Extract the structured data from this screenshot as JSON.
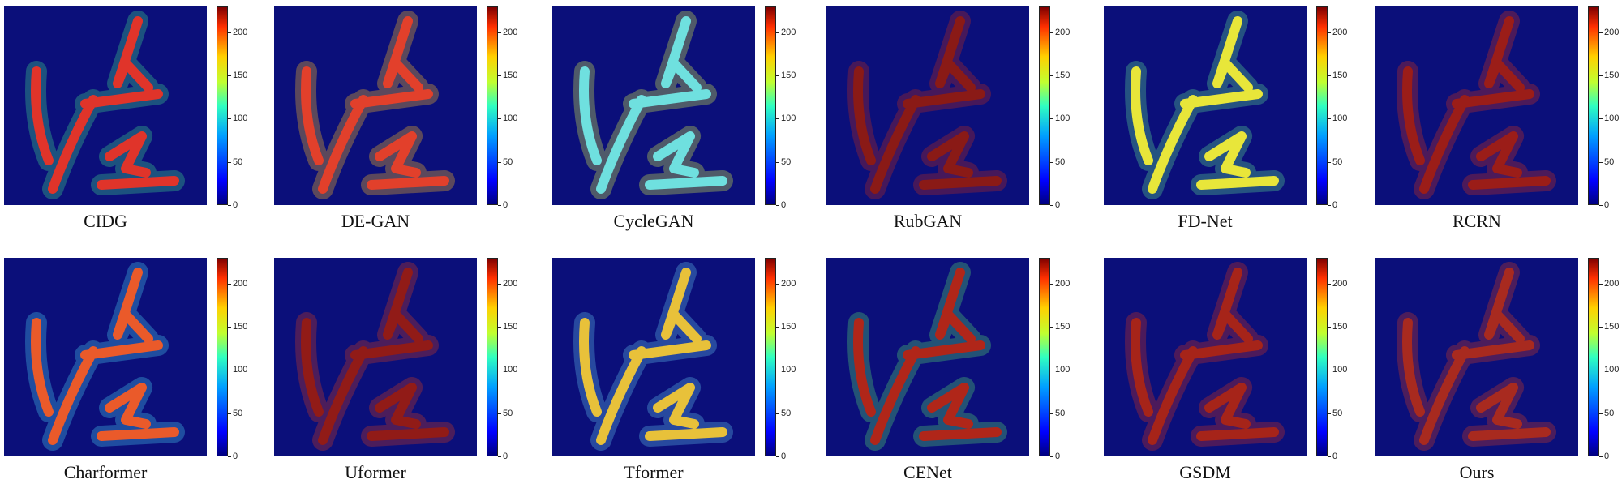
{
  "panels": [
    {
      "label": "CIDG",
      "tint": "#e0342a",
      "accent": "#3bd18a"
    },
    {
      "label": "DE-GAN",
      "tint": "#e2402b",
      "accent": "#f2b526"
    },
    {
      "label": "CycleGAN",
      "tint": "#6fe0df",
      "accent": "#cfe84a"
    },
    {
      "label": "RubGAN",
      "tint": "#8a1a16",
      "accent": "#b52a20"
    },
    {
      "label": "FD-Net",
      "tint": "#e8e63a",
      "accent": "#57d48f"
    },
    {
      "label": "RCRN",
      "tint": "#9b1d18",
      "accent": "#c7301f"
    },
    {
      "label": "Charformer",
      "tint": "#ea5a2a",
      "accent": "#46c3e8"
    },
    {
      "label": "Uformer",
      "tint": "#911b17",
      "accent": "#c53823"
    },
    {
      "label": "Tformer",
      "tint": "#e8c13a",
      "accent": "#5bb8e6"
    },
    {
      "label": "CENet",
      "tint": "#b02619",
      "accent": "#50d070"
    },
    {
      "label": "GSDM",
      "tint": "#a62419",
      "accent": "#c53223"
    },
    {
      "label": "Ours",
      "tint": "#a82a1f",
      "accent": "#c53826"
    }
  ],
  "colorbar": {
    "ticks": [
      "0",
      "50",
      "100",
      "150",
      "200"
    ]
  }
}
